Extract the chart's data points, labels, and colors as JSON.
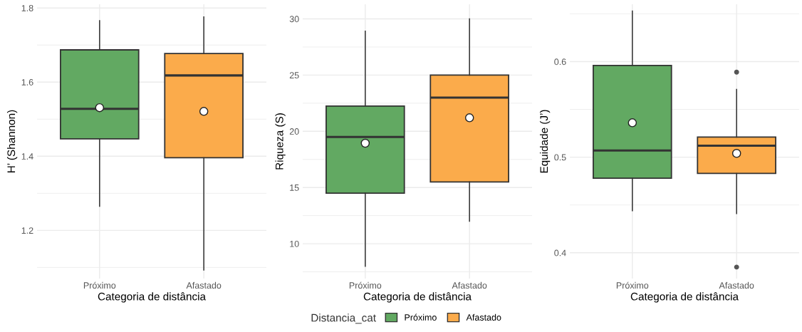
{
  "chart_data": [
    {
      "type": "box",
      "xlabel": "Categoria de distância",
      "ylabel": "H’ (Shannon)",
      "categories": [
        "Próximo",
        "Afastado"
      ],
      "grid": true,
      "ylim": [
        1.07,
        1.81
      ],
      "yticks": [
        {
          "value": 1.1,
          "label": null
        },
        1.2,
        {
          "value": 1.3,
          "label": null
        },
        1.4,
        {
          "value": 1.5,
          "label": null
        },
        1.6,
        {
          "value": 1.7,
          "label": null
        },
        1.8
      ],
      "series": [
        {
          "color": "#62a962",
          "boxes": [
            {
              "low": 1.265,
              "q1": 1.447,
              "median": 1.528,
              "q3": 1.687,
              "high": 1.766,
              "mean": 1.531
            },
            null
          ]
        },
        {
          "color": "#fbab4b",
          "boxes": [
            null,
            {
              "low": 1.093,
              "q1": 1.396,
              "median": 1.618,
              "q3": 1.677,
              "high": 1.776,
              "mean": 1.521
            }
          ]
        }
      ]
    },
    {
      "type": "box",
      "xlabel": "Categoria de distância",
      "ylabel": "Riqueza (S)",
      "categories": [
        "Próximo",
        "Afastado"
      ],
      "grid": true,
      "ylim": [
        6.9,
        31.3
      ],
      "yticks": [
        {
          "value": 7.5,
          "label": null
        },
        10,
        {
          "value": 12.5,
          "label": null
        },
        15,
        {
          "value": 17.5,
          "label": null
        },
        20,
        {
          "value": 22.5,
          "label": null
        },
        25,
        {
          "value": 27.5,
          "label": null
        },
        30
      ],
      "legend": "bottom",
      "legend_title": "Distancia_cat",
      "series": [
        {
          "name": "Próximo",
          "color": "#62a962",
          "boxes": [
            {
              "low": 8.0,
              "q1": 14.5,
              "median": 19.5,
              "q3": 22.25,
              "high": 28.9,
              "mean": 18.94
            },
            null
          ]
        },
        {
          "name": "Afastado",
          "color": "#fbab4b",
          "boxes": [
            null,
            {
              "low": 12.0,
              "q1": 15.5,
              "median": 23.0,
              "q3": 25.0,
              "high": 30.0,
              "mean": 21.2
            }
          ]
        }
      ]
    },
    {
      "type": "box",
      "xlabel": "Categoria de distância",
      "ylabel": "Equidade (J’)",
      "categories": [
        "Próximo",
        "Afastado"
      ],
      "grid": true,
      "ylim": [
        0.373,
        0.66
      ],
      "yticks": [
        0.4,
        {
          "value": 0.45,
          "label": null
        },
        0.5,
        {
          "value": 0.55,
          "label": null
        },
        0.6,
        {
          "value": 0.65,
          "label": null
        }
      ],
      "series": [
        {
          "color": "#62a962",
          "boxes": [
            {
              "low": 0.444,
              "q1": 0.478,
              "median": 0.507,
              "q3": 0.596,
              "high": 0.653,
              "mean": 0.536
            },
            null
          ]
        },
        {
          "color": "#fbab4b",
          "boxes": [
            null,
            {
              "low": 0.441,
              "q1": 0.483,
              "median": 0.512,
              "q3": 0.521,
              "high": 0.571,
              "mean": 0.504,
              "outliers": [
                0.589,
                0.385
              ]
            }
          ]
        }
      ]
    }
  ]
}
